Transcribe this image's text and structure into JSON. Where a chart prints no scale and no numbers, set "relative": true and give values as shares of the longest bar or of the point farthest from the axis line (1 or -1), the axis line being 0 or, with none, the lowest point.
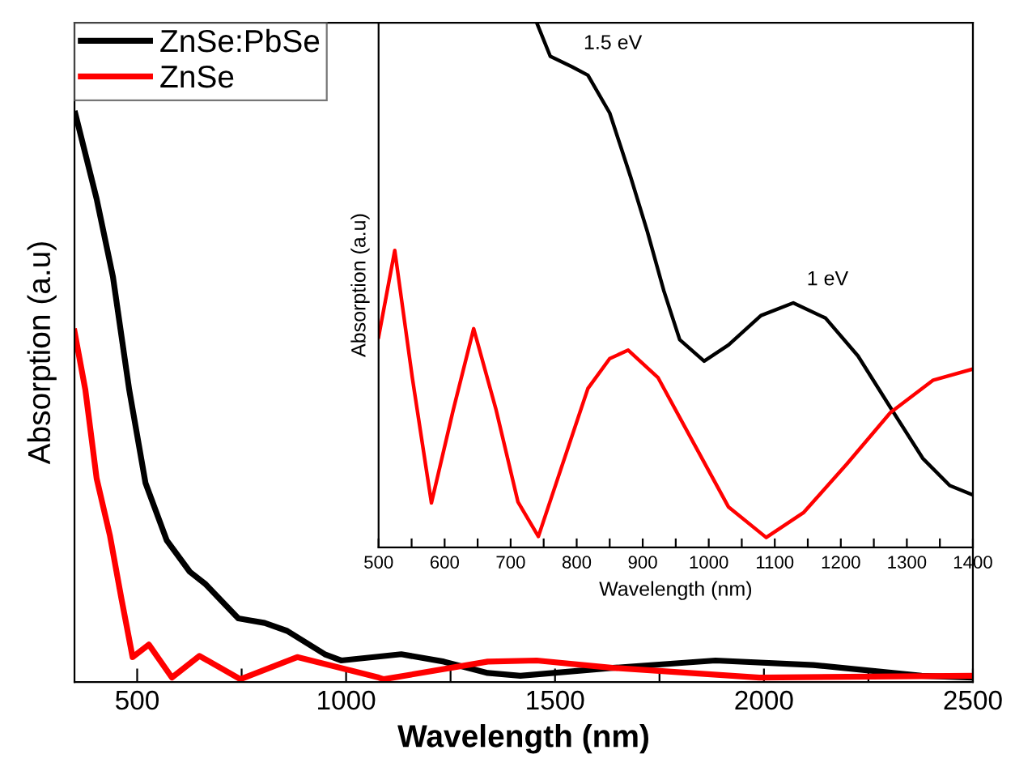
{
  "chart_data": [
    {
      "type": "line",
      "xlabel": "Wavelength (nm)",
      "ylabel": "Absorption (a.u)",
      "relative": true,
      "xlim": [
        350,
        2500
      ],
      "xticks": [
        500,
        {
          "value": 750,
          "label": null
        },
        1000,
        {
          "value": 1250,
          "label": null
        },
        1500,
        {
          "value": 1750,
          "label": null
        },
        2000,
        {
          "value": 2250,
          "label": null
        },
        2500
      ],
      "tick_labels": "x",
      "legend": "top left",
      "grid": false,
      "marker": "none",
      "line_style": "solid",
      "series": [
        {
          "name": "ZnSe:PbSe",
          "color": "#000000",
          "x": [
            352,
            403,
            442,
            481,
            520,
            571,
            626,
            664,
            742,
            805,
            859,
            949,
            988,
            1132,
            1234,
            1339,
            1417,
            1638,
            1884,
            2118,
            2377,
            2500
          ],
          "values": [
            1.0,
            0.85,
            0.713,
            0.514,
            0.35,
            0.249,
            0.194,
            0.172,
            0.112,
            0.104,
            0.09,
            0.049,
            0.038,
            0.049,
            0.036,
            0.016,
            0.011,
            0.025,
            0.038,
            0.03,
            0.011,
            0.008
          ]
        },
        {
          "name": "ZnSe",
          "color": "#ff0000",
          "x": [
            350,
            376,
            403,
            435,
            462,
            489,
            528,
            583,
            649,
            747,
            883,
            1078,
            1090,
            1339,
            1456,
            1638,
            1989,
            2500
          ],
          "values": [
            0.617,
            0.514,
            0.358,
            0.257,
            0.148,
            0.044,
            0.066,
            0.008,
            0.046,
            0.005,
            0.044,
            0.008,
            0.005,
            0.036,
            0.038,
            0.025,
            0.008,
            0.011
          ]
        }
      ]
    },
    {
      "type": "line",
      "xlabel": "Wavelength (nm)",
      "ylabel": "Absorption (a.u)",
      "relative": true,
      "xlim": [
        500,
        1400
      ],
      "xticks": [
        500,
        {
          "value": 550,
          "label": null
        },
        600,
        {
          "value": 650,
          "label": null
        },
        700,
        {
          "value": 750,
          "label": null
        },
        800,
        {
          "value": 850,
          "label": null
        },
        900,
        {
          "value": 950,
          "label": null
        },
        1000,
        {
          "value": 1050,
          "label": null
        },
        1100,
        {
          "value": 1150,
          "label": null
        },
        1200,
        {
          "value": 1250,
          "label": null
        },
        1300,
        {
          "value": 1350,
          "label": null
        },
        1400
      ],
      "tick_labels": "x",
      "legend": false,
      "grid": false,
      "marker": "none",
      "line_style": "solid",
      "annotations": [
        {
          "text": "1.5 eV",
          "x": 790,
          "y": 0.916
        },
        {
          "text": "1 eV",
          "x": 1128,
          "y": 0.466
        }
      ],
      "series": [
        {
          "color": "#000000",
          "x": [
            739.5,
            760,
            793,
            817,
            850,
            882,
            907,
            932,
            956,
            993,
            1030,
            1079,
            1128,
            1177,
            1226,
            1275,
            1324,
            1365,
            1400
          ],
          "values": [
            1.0,
            0.936,
            0.916,
            0.9,
            0.828,
            0.705,
            0.602,
            0.489,
            0.396,
            0.355,
            0.386,
            0.442,
            0.466,
            0.437,
            0.365,
            0.267,
            0.17,
            0.118,
            0.1
          ]
        },
        {
          "color": "#ff0000",
          "x": [
            500,
            524.5,
            551,
            580,
            613,
            644,
            678,
            711,
            742,
            776,
            817,
            850,
            878,
            923,
            981,
            1030,
            1087,
            1144,
            1209,
            1275,
            1340,
            1400
          ],
          "values": [
            0.401,
            0.566,
            0.324,
            0.085,
            0.262,
            0.417,
            0.262,
            0.087,
            0.021,
            0.149,
            0.303,
            0.36,
            0.376,
            0.324,
            0.19,
            0.077,
            0.019,
            0.067,
            0.159,
            0.257,
            0.319,
            0.34
          ]
        }
      ]
    }
  ]
}
